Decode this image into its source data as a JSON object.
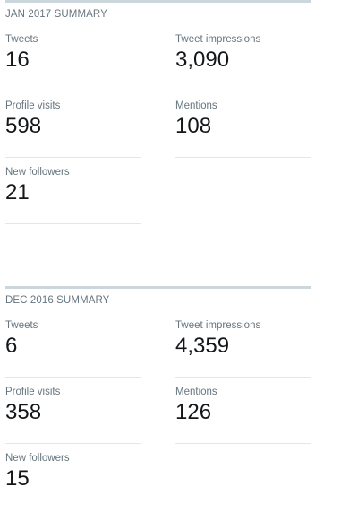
{
  "summaries": [
    {
      "title": "JAN 2017 SUMMARY",
      "tweets": {
        "label": "Tweets",
        "value": "16"
      },
      "impressions": {
        "label": "Tweet impressions",
        "value": "3,090"
      },
      "profile_visits": {
        "label": "Profile visits",
        "value": "598"
      },
      "mentions": {
        "label": "Mentions",
        "value": "108"
      },
      "new_followers": {
        "label": "New followers",
        "value": "21"
      }
    },
    {
      "title": "DEC 2016 SUMMARY",
      "tweets": {
        "label": "Tweets",
        "value": "6"
      },
      "impressions": {
        "label": "Tweet impressions",
        "value": "4,359"
      },
      "profile_visits": {
        "label": "Profile visits",
        "value": "358"
      },
      "mentions": {
        "label": "Mentions",
        "value": "126"
      },
      "new_followers": {
        "label": "New followers",
        "value": "15"
      }
    }
  ]
}
